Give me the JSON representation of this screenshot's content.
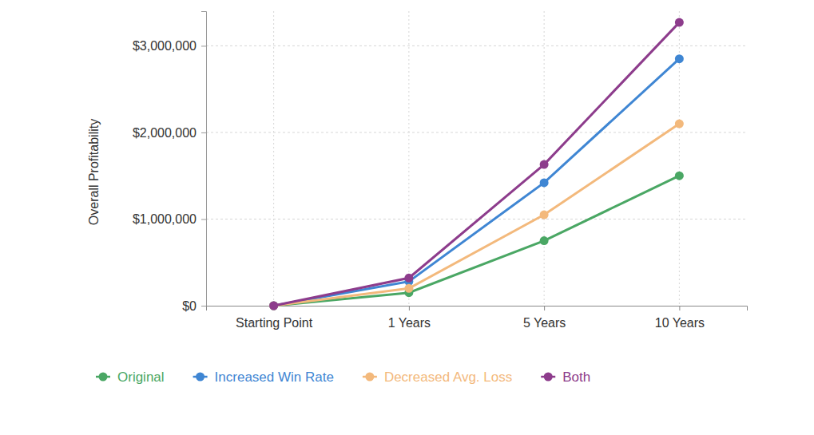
{
  "chart_data": {
    "type": "line",
    "y_label": "Overall Profitability",
    "categories": [
      "Starting Point",
      "1 Years",
      "5 Years",
      "10 Years"
    ],
    "series": [
      {
        "name": "Original",
        "color": "#4aa764",
        "values": [
          0,
          150000,
          750000,
          1500000
        ]
      },
      {
        "name": "Increased Win Rate",
        "color": "#3f86d3",
        "values": [
          0,
          280000,
          1420000,
          2850000
        ]
      },
      {
        "name": "Decreased Avg. Loss",
        "color": "#f3b97c",
        "values": [
          0,
          200000,
          1050000,
          2100000
        ]
      },
      {
        "name": "Both",
        "color": "#8d3c8c",
        "values": [
          0,
          320000,
          1630000,
          3270000
        ]
      }
    ],
    "ylim": [
      0,
      3400000
    ],
    "yticks": [
      {
        "value": 0,
        "label": "$0"
      },
      {
        "value": 1000000,
        "label": "$1,000,000"
      },
      {
        "value": 2000000,
        "label": "$2,000,000"
      },
      {
        "value": 3000000,
        "label": "$3,000,000"
      }
    ],
    "grid": true,
    "legend": "bottom",
    "marker": "circle"
  }
}
